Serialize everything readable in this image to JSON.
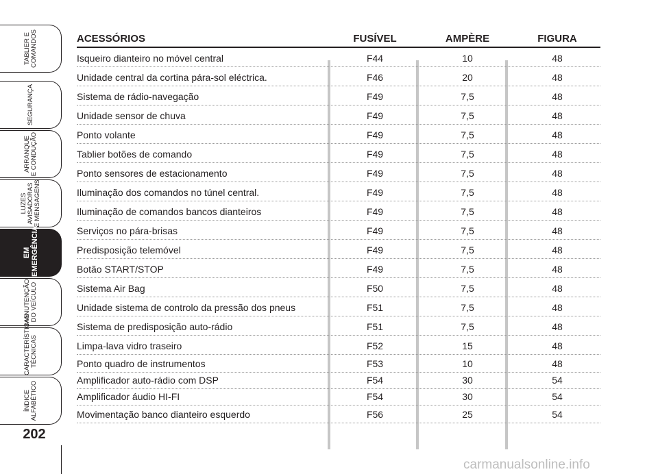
{
  "sidebar": {
    "tabs": [
      {
        "label": "TABLIER E\nCOMANDOS",
        "active": false
      },
      {
        "label": "SEGURANÇA",
        "active": false
      },
      {
        "label": "ARRANQUE\nE CONDUÇÃO",
        "active": false
      },
      {
        "label": "LUZES\nAVISADORAS\nE MENSAGENS",
        "active": false
      },
      {
        "label": "EM\nEMERGÊNCIA",
        "active": true
      },
      {
        "label": "MANUTENÇÃO\nDO VEÍCULO",
        "active": false
      },
      {
        "label": "CARACTERÍSTICAS\nTÉCNICAS",
        "active": false
      },
      {
        "label": "ÍNDICE\nALFABÉTICO",
        "active": false
      }
    ],
    "page_number": "202"
  },
  "table": {
    "headers": {
      "accessories": "ACESSÓRIOS",
      "fuse": "FUSÍVEL",
      "ampere": "AMPÈRE",
      "figure": "FIGURA"
    },
    "rows": [
      {
        "accessory": "Isqueiro dianteiro no móvel central",
        "fuse": "F44",
        "ampere": "10",
        "figure": "48"
      },
      {
        "accessory": "Unidade central da cortina pára-sol eléctrica.",
        "fuse": "F46",
        "ampere": "20",
        "figure": "48"
      },
      {
        "accessory": "Sistema de rádio-navegação",
        "fuse": "F49",
        "ampere": "7,5",
        "figure": "48"
      },
      {
        "accessory": "Unidade sensor de chuva",
        "fuse": "F49",
        "ampere": "7,5",
        "figure": "48"
      },
      {
        "accessory": "Ponto volante",
        "fuse": "F49",
        "ampere": "7,5",
        "figure": "48"
      },
      {
        "accessory": "Tablier botões de comando",
        "fuse": "F49",
        "ampere": "7,5",
        "figure": "48"
      },
      {
        "accessory": "Ponto sensores de estacionamento",
        "fuse": "F49",
        "ampere": "7,5",
        "figure": "48"
      },
      {
        "accessory": "Iluminação dos comandos no túnel central.",
        "fuse": "F49",
        "ampere": "7,5",
        "figure": "48"
      },
      {
        "accessory": "Iluminação de comandos bancos dianteiros",
        "fuse": "F49",
        "ampere": "7,5",
        "figure": "48"
      },
      {
        "accessory": "Serviços no pára-brisas",
        "fuse": "F49",
        "ampere": "7,5",
        "figure": "48"
      },
      {
        "accessory": "Predisposição telemóvel",
        "fuse": "F49",
        "ampere": "7,5",
        "figure": "48"
      },
      {
        "accessory": "Botão START/STOP",
        "fuse": "F49",
        "ampere": "7,5",
        "figure": "48"
      },
      {
        "accessory": "Sistema Air Bag",
        "fuse": "F50",
        "ampere": "7,5",
        "figure": "48"
      },
      {
        "accessory": "Unidade sistema de controlo da pressão dos pneus",
        "fuse": "F51",
        "ampere": "7,5",
        "figure": "48"
      },
      {
        "accessory": "Sistema de predisposição auto-rádio",
        "fuse": "F51",
        "ampere": "7,5",
        "figure": "48"
      },
      {
        "accessory": "Limpa-lava vidro traseiro",
        "fuse": "F52",
        "ampere": "15",
        "figure": "48"
      },
      {
        "accessory": "Ponto quadro de instrumentos",
        "fuse": "F53",
        "ampere": "10",
        "figure": "48"
      },
      {
        "accessory": "Amplificador auto-rádio com DSP",
        "fuse": "F54",
        "ampere": "30",
        "figure": "54"
      },
      {
        "accessory": "Amplificador áudio HI-FI",
        "fuse": "F54",
        "ampere": "30",
        "figure": "54"
      },
      {
        "accessory": "Movimentação banco dianteiro esquerdo",
        "fuse": "F56",
        "ampere": "25",
        "figure": "54"
      }
    ]
  },
  "watermark": "carmanualsonline.info",
  "colors": {
    "text": "#231f20",
    "separator": "#c6c6c6",
    "active_tab": "#231f20"
  }
}
